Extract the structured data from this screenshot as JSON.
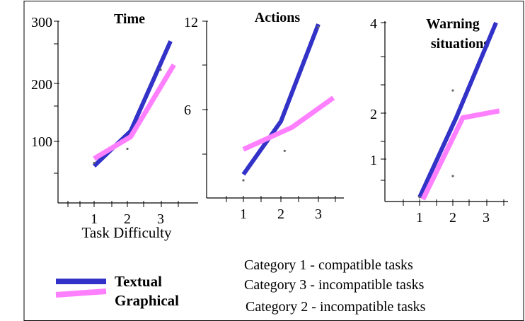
{
  "chart_data": [
    {
      "type": "line",
      "title": "Time",
      "xlabel": "Task Difficulty",
      "x_ticks": [
        "1",
        "2",
        "3"
      ],
      "y_ticks": [
        "100",
        "200",
        "300"
      ],
      "ylim": [
        0,
        300
      ],
      "series": [
        {
          "name": "Textual",
          "x": [
            1,
            2.1,
            3.3
          ],
          "y": [
            60,
            118,
            268
          ]
        },
        {
          "name": "Graphical",
          "x": [
            1,
            2.1,
            3.4
          ],
          "y": [
            72,
            108,
            230
          ]
        }
      ],
      "points": [
        {
          "x": 1,
          "y": 65
        },
        {
          "x": 2,
          "y": 88
        },
        {
          "x": 3,
          "y": 222
        }
      ]
    },
    {
      "type": "line",
      "title": "Actions",
      "xlabel": "",
      "x_ticks": [
        "1",
        "2",
        "3"
      ],
      "y_ticks": [
        "6",
        "12"
      ],
      "ylim": [
        0,
        12
      ],
      "series": [
        {
          "name": "Textual",
          "x": [
            1,
            2,
            3
          ],
          "y": [
            1.6,
            5.2,
            11.8
          ]
        },
        {
          "name": "Graphical",
          "x": [
            1,
            2.3,
            3.4
          ],
          "y": [
            3.3,
            4.8,
            6.8
          ]
        }
      ],
      "points": [
        {
          "x": 1,
          "y": 1.2
        },
        {
          "x": 2.1,
          "y": 3.2
        },
        {
          "x": 3,
          "y": 11.6
        }
      ]
    },
    {
      "type": "line",
      "title": "Warning situations",
      "xlabel": "",
      "x_ticks": [
        "1",
        "2",
        "3"
      ],
      "y_ticks": [
        "1",
        "2",
        "4"
      ],
      "ylim": [
        0,
        4
      ],
      "series": [
        {
          "name": "Textual",
          "x": [
            1,
            2.1,
            3.3
          ],
          "y": [
            0.1,
            1.9,
            4.0
          ]
        },
        {
          "name": "Graphical",
          "x": [
            1.1,
            2.3,
            3.4
          ],
          "y": [
            0.05,
            1.9,
            2.05
          ]
        }
      ],
      "points": [
        {
          "x": 1,
          "y": 0.1
        },
        {
          "x": 2,
          "y": 0.6
        },
        {
          "x": 2,
          "y": 2.5
        }
      ]
    }
  ],
  "legend": {
    "textual_label": "Textual",
    "graphical_label": "Graphical",
    "textual_color": "#3232c8",
    "graphical_color": "#ff80ff"
  },
  "categories": {
    "line1": "Category 1  - compatible tasks",
    "line2": "Category 3 - incompatible tasks",
    "line3": "Category 2 - incompatible tasks"
  }
}
